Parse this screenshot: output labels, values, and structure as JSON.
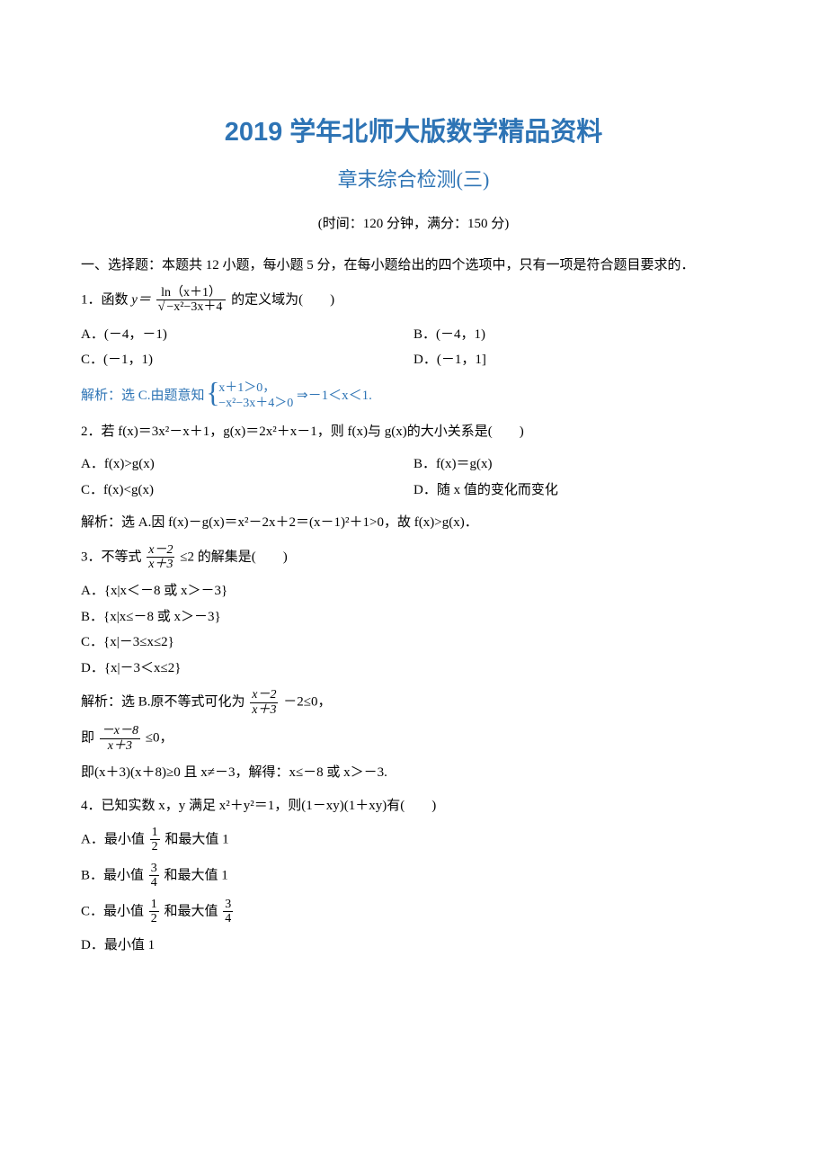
{
  "title_main": "2019 学年北师大版数学精品资料",
  "title_sub": "章末综合检测(三)",
  "meta": "(时间：120 分钟，满分：150 分)",
  "section_intro": "一、选择题：本题共 12 小题，每小题 5 分，在每小题给出的四个选项中，只有一项是符合题目要求的．",
  "q1": {
    "prefix": "1．函数 ",
    "y_eq": "y＝",
    "num": "ln（x＋1）",
    "den_sqrt_inner": "−x²−3x＋4",
    "suffix": "的定义域为(　　)",
    "A": "A．(－4，－1)",
    "B": "B．(－4，1)",
    "C": "C．(－1，1)",
    "D": "D．(－1，1]",
    "ans_label": "解析：选 C.",
    "ans_pre": "由题意知",
    "sys1": "x＋1＞0，",
    "sys2": "−x²−3x＋4＞0",
    "ans_post": "⇒－1＜x＜1."
  },
  "q2": {
    "stem": "2．若 f(x)＝3x²－x＋1，g(x)＝2x²＋x－1，则 f(x)与 g(x)的大小关系是(　　)",
    "A": "A．f(x)>g(x)",
    "B": "B．f(x)＝g(x)",
    "C": "C．f(x)<g(x)",
    "D": "D．随 x 值的变化而变化",
    "ans": "解析：选 A.因 f(x)－g(x)＝x²－2x＋2＝(x－1)²＋1>0，故 f(x)>g(x)．"
  },
  "q3": {
    "prefix": "3．不等式",
    "num": "x－2",
    "den": "x＋3",
    "mid": "≤2 的解集是(　　)",
    "A": "A．{x|x＜－8 或 x＞－3}",
    "B": "B．{x|x≤－8 或 x＞－3}",
    "C": "C．{x|－3≤x≤2}",
    "D": "D．{x|－3＜x≤2}",
    "ans_pre": "解析：选 B.原不等式可化为",
    "ans_num": "x－2",
    "ans_den": "x＋3",
    "ans_mid": "－2≤0，",
    "ans2_pre": "即",
    "ans2_num": "－x－8",
    "ans2_den": "x＋3",
    "ans2_post": "≤0，",
    "ans3": "即(x＋3)(x＋8)≥0 且 x≠－3，解得：x≤－8 或 x＞－3."
  },
  "q4": {
    "stem": "4．已知实数 x，y 满足 x²＋y²＝1，则(1－xy)(1＋xy)有(　　)",
    "A_pre": "A．最小值",
    "A_num": "1",
    "A_den": "2",
    "A_post": "和最大值 1",
    "B_pre": "B．最小值",
    "B_num": "3",
    "B_den": "4",
    "B_post": "和最大值 1",
    "C_pre": "C．最小值",
    "C_num": "1",
    "C_den": "2",
    "C_mid": "和最大值",
    "C_num2": "3",
    "C_den2": "4",
    "D": "D．最小值 1"
  },
  "colors": {
    "heading_blue": "#2e74b5",
    "text_black": "#000000",
    "background": "#ffffff"
  }
}
